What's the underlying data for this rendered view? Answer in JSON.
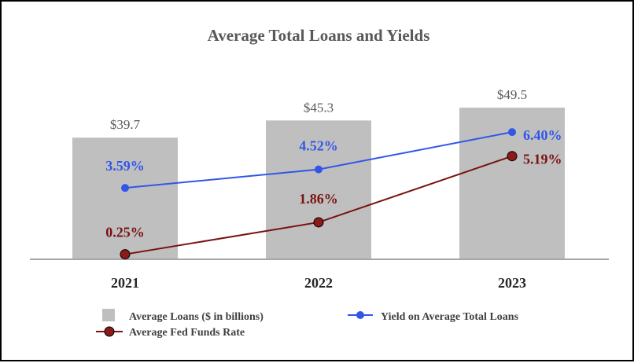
{
  "chart_data": {
    "type": "bar",
    "title": "Average Total Loans and Yields",
    "categories": [
      "2021",
      "2022",
      "2023"
    ],
    "series": [
      {
        "name": "Average Loans ($ in billions)",
        "kind": "bar",
        "values": [
          39.7,
          45.3,
          49.5
        ],
        "labels": [
          "$39.7",
          "$45.3",
          "$49.5"
        ],
        "color": "#bfbfbf"
      },
      {
        "name": "Yield on Average Total Loans",
        "kind": "line",
        "values": [
          3.59,
          4.52,
          6.4
        ],
        "labels": [
          "3.59%",
          "4.52%",
          "6.40%"
        ],
        "color": "#3057e8"
      },
      {
        "name": "Average Fed Funds Rate",
        "kind": "line",
        "values": [
          0.25,
          1.86,
          5.19
        ],
        "labels": [
          "0.25%",
          "1.86%",
          "5.19%"
        ],
        "color": "#7a1212"
      }
    ],
    "legend": "bottom",
    "grid": false
  }
}
